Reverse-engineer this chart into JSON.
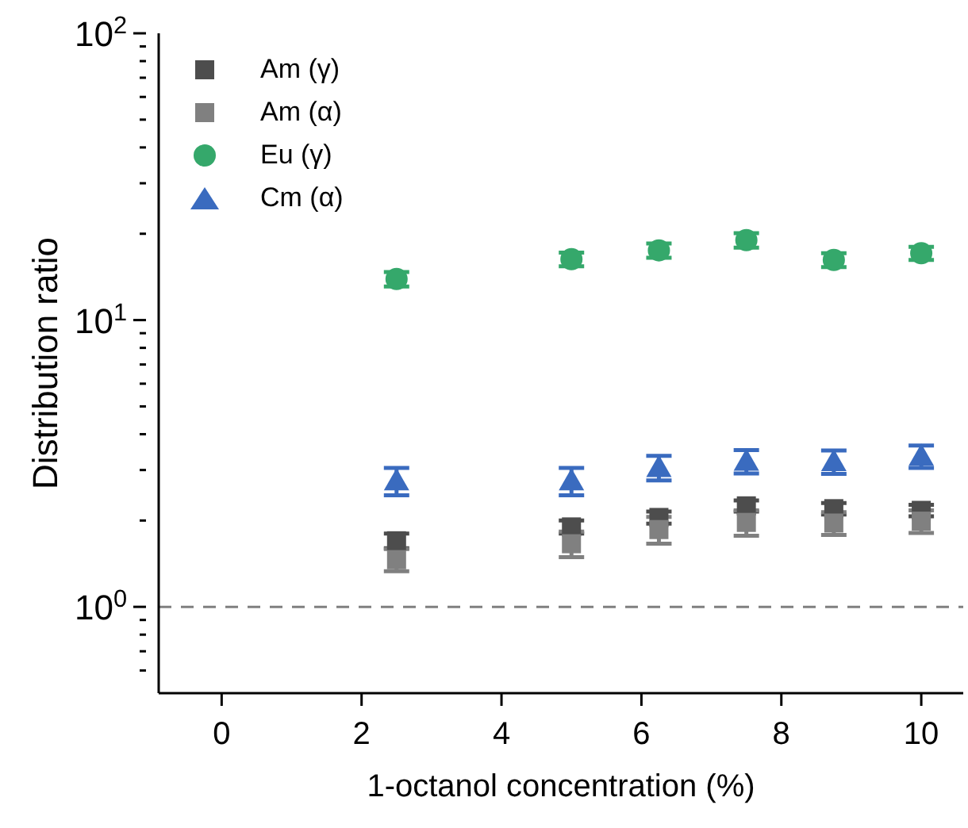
{
  "chart_data": {
    "type": "scatter",
    "xlabel": "1-octanol concentration (%)",
    "ylabel": "Distribution ratio",
    "x": [
      2.5,
      5,
      6.25,
      7.5,
      8.75,
      10
    ],
    "series": [
      {
        "name": "Am (γ)",
        "color": "#4d4d4d",
        "marker": "square",
        "values": [
          1.7,
          1.9,
          2.05,
          2.25,
          2.2,
          2.17
        ],
        "errors": [
          0.1,
          0.1,
          0.1,
          0.1,
          0.1,
          0.1
        ]
      },
      {
        "name": "Am (α)",
        "color": "#808080",
        "marker": "square",
        "values": [
          1.46,
          1.66,
          1.86,
          1.97,
          1.96,
          1.99
        ],
        "errors": [
          0.13,
          0.17,
          0.2,
          0.2,
          0.18,
          0.18
        ]
      },
      {
        "name": "Eu (γ)",
        "color": "#35a86b",
        "marker": "circle",
        "values": [
          13.9,
          16.3,
          17.5,
          19.0,
          16.2,
          17.1
        ],
        "errors": [
          0.8,
          0.9,
          1.0,
          1.1,
          0.9,
          0.9
        ]
      },
      {
        "name": "Cm (α)",
        "color": "#3a6bbf",
        "marker": "triangle",
        "values": [
          2.75,
          2.75,
          3.06,
          3.22,
          3.21,
          3.35
        ],
        "errors": [
          0.3,
          0.3,
          0.3,
          0.3,
          0.3,
          0.3
        ]
      }
    ],
    "log": "y",
    "xlim": [
      -0.9,
      10.6
    ],
    "xticks": [
      0,
      2,
      4,
      6,
      8,
      10
    ],
    "ylim": [
      0.5,
      100
    ],
    "yticks": [
      {
        "value": 0.6,
        "label": null
      },
      {
        "value": 0.7,
        "label": null
      },
      {
        "value": 0.8,
        "label": null
      },
      {
        "value": 0.9,
        "label": null
      },
      {
        "value": 1,
        "label": "10$^{0}$"
      },
      {
        "value": 2,
        "label": null
      },
      {
        "value": 3,
        "label": null
      },
      {
        "value": 4,
        "label": null
      },
      {
        "value": 5,
        "label": null
      },
      {
        "value": 6,
        "label": null
      },
      {
        "value": 7,
        "label": null
      },
      {
        "value": 8,
        "label": null
      },
      {
        "value": 9,
        "label": null
      },
      {
        "value": 10,
        "label": "10$^{1}$"
      },
      {
        "value": 20,
        "label": null
      },
      {
        "value": 30,
        "label": null
      },
      {
        "value": 40,
        "label": null
      },
      {
        "value": 50,
        "label": null
      },
      {
        "value": 60,
        "label": null
      },
      {
        "value": 70,
        "label": null
      },
      {
        "value": 80,
        "label": null
      },
      {
        "value": 90,
        "label": null
      },
      {
        "value": 100,
        "label": "10$^{2}$"
      }
    ],
    "ref_lines": [
      {
        "axis": "y",
        "value": 1,
        "color": "#808080",
        "line_style": "dashed"
      }
    ],
    "grid": false,
    "legend": "top left"
  }
}
